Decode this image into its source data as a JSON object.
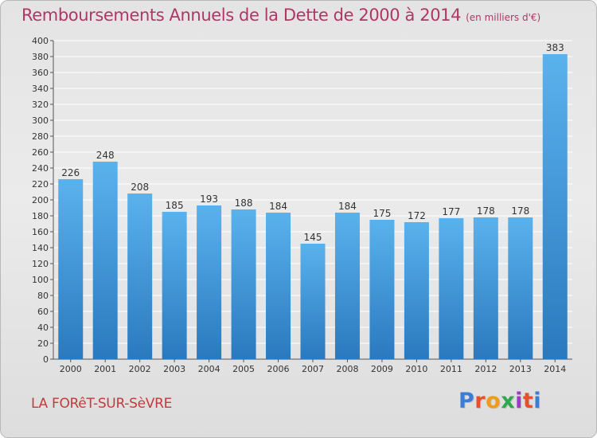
{
  "header": {
    "title": "Remboursements Annuels de la Dette de 2000 à 2014",
    "subtitle": "(en milliers d'€)"
  },
  "footer": {
    "commune": "LA FORêT-SUR-SèVRE",
    "brand_logo": "Proxiti"
  },
  "colors": {
    "bar_light": "#5ab2ec",
    "bar_dark": "#2a79bf",
    "title": "#b03668",
    "commune": "#c53a3a"
  },
  "chart_data": {
    "type": "bar",
    "title": "Remboursements Annuels de la Dette de 2000 à 2014",
    "subtitle": "(en milliers d'€)",
    "categories": [
      "2000",
      "2001",
      "2002",
      "2003",
      "2004",
      "2005",
      "2006",
      "2007",
      "2008",
      "2009",
      "2010",
      "2011",
      "2012",
      "2013",
      "2014"
    ],
    "values": [
      226,
      248,
      208,
      185,
      193,
      188,
      184,
      145,
      184,
      175,
      172,
      177,
      178,
      178,
      383
    ],
    "ylim": [
      0,
      400
    ],
    "ytick_step": 20,
    "grid": true,
    "legend": "none"
  }
}
